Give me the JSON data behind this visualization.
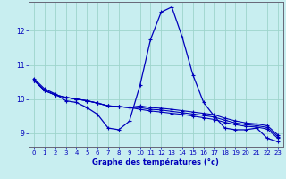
{
  "xlabel": "Graphe des températures (°c)",
  "background_color": "#c8eef0",
  "grid_color": "#9dd4cc",
  "line_color": "#0000bb",
  "xlim": [
    -0.5,
    23.5
  ],
  "ylim": [
    8.6,
    12.85
  ],
  "yticks": [
    9,
    10,
    11,
    12
  ],
  "xticks": [
    0,
    1,
    2,
    3,
    4,
    5,
    6,
    7,
    8,
    9,
    10,
    11,
    12,
    13,
    14,
    15,
    16,
    17,
    18,
    19,
    20,
    21,
    22,
    23
  ],
  "series1": [
    10.6,
    10.3,
    10.15,
    9.95,
    9.9,
    9.75,
    9.55,
    9.15,
    9.1,
    9.35,
    10.4,
    11.75,
    12.55,
    12.7,
    11.8,
    10.7,
    9.9,
    9.5,
    9.15,
    9.1,
    9.1,
    9.15,
    8.85,
    8.75
  ],
  "series2": [
    10.55,
    10.25,
    10.12,
    10.05,
    10.0,
    9.95,
    9.88,
    9.8,
    9.78,
    9.75,
    9.7,
    9.65,
    9.62,
    9.58,
    9.55,
    9.5,
    9.45,
    9.4,
    9.32,
    9.25,
    9.2,
    9.18,
    9.12,
    8.85
  ],
  "series3": [
    10.55,
    10.25,
    10.12,
    10.05,
    10.0,
    9.95,
    9.88,
    9.8,
    9.78,
    9.75,
    9.75,
    9.7,
    9.68,
    9.64,
    9.6,
    9.56,
    9.52,
    9.47,
    9.38,
    9.3,
    9.25,
    9.22,
    9.17,
    8.9
  ],
  "series4": [
    10.55,
    10.25,
    10.12,
    10.05,
    10.0,
    9.95,
    9.88,
    9.8,
    9.78,
    9.75,
    9.8,
    9.75,
    9.73,
    9.7,
    9.66,
    9.62,
    9.58,
    9.54,
    9.44,
    9.36,
    9.3,
    9.27,
    9.22,
    8.95
  ]
}
